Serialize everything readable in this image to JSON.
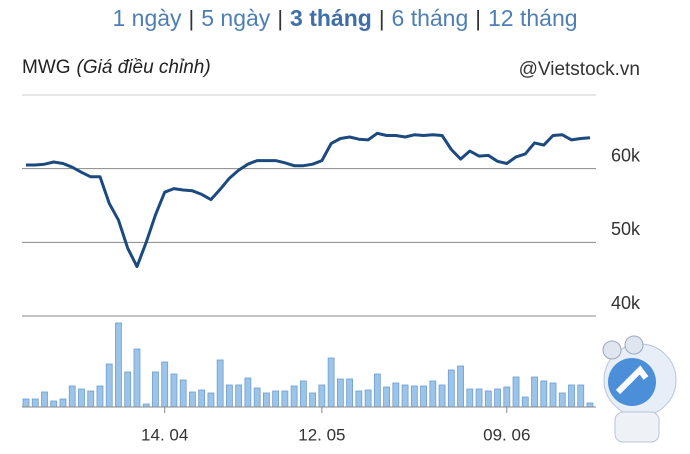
{
  "tabs": {
    "items": [
      "1 ngày",
      "5 ngày",
      "3 tháng",
      "6 tháng",
      "12 tháng"
    ],
    "active": 2,
    "separator": "|"
  },
  "chart_data": [
    {
      "type": "line",
      "title": "MWG",
      "subtitle": "(Giá điều chỉnh)",
      "source": "@Vietstock.vn",
      "categories": [
        null,
        null,
        null,
        null,
        null,
        null,
        null,
        null,
        null,
        null,
        null,
        null,
        null,
        null,
        null,
        "14. 04",
        null,
        null,
        null,
        null,
        null,
        null,
        null,
        null,
        null,
        null,
        null,
        null,
        null,
        null,
        null,
        null,
        "12. 05",
        null,
        null,
        null,
        null,
        null,
        null,
        null,
        null,
        null,
        null,
        null,
        null,
        null,
        null,
        null,
        null,
        null,
        null,
        null,
        "09. 06",
        null,
        null,
        null,
        null,
        null,
        null,
        null,
        null,
        null
      ],
      "series": [
        {
          "name": "MWG",
          "color": "#1d4a7e",
          "values": [
            60500,
            60500,
            60600,
            60900,
            60700,
            60200,
            59500,
            58900,
            58900,
            55300,
            53000,
            49200,
            46700,
            50000,
            53700,
            56800,
            57300,
            57100,
            57000,
            56500,
            55800,
            57200,
            58700,
            59800,
            60600,
            61100,
            61100,
            61100,
            60800,
            60400,
            60400,
            60600,
            61100,
            63400,
            64100,
            64300,
            64000,
            63900,
            64800,
            64500,
            64500,
            64300,
            64600,
            64500,
            64600,
            64500,
            62600,
            61300,
            62400,
            61700,
            61800,
            61000,
            60700,
            61600,
            62000,
            63500,
            63200,
            64500,
            64600,
            63900,
            64100,
            64200
          ]
        }
      ],
      "ylim": [
        40000,
        70000
      ],
      "yticks": [
        {
          "value": 40000,
          "label": "40k"
        },
        {
          "value": 50000,
          "label": "50k"
        },
        {
          "value": 60000,
          "label": "60k"
        }
      ],
      "grid": true
    },
    {
      "type": "bar",
      "color": "#9cc3e8",
      "ylim": [
        0,
        90
      ],
      "values": [
        8,
        8,
        15,
        6,
        8,
        21,
        18,
        16,
        21,
        43,
        84,
        35,
        58,
        3,
        35,
        45,
        33,
        27,
        15,
        17,
        14,
        47,
        22,
        22,
        29,
        19,
        14,
        16,
        16,
        21,
        26,
        14,
        22,
        49,
        28,
        28,
        16,
        17,
        33,
        20,
        24,
        22,
        21,
        21,
        26,
        22,
        37,
        41,
        18,
        18,
        16,
        18,
        20,
        30,
        10,
        30,
        26,
        24,
        14,
        22,
        22,
        4
      ]
    }
  ]
}
